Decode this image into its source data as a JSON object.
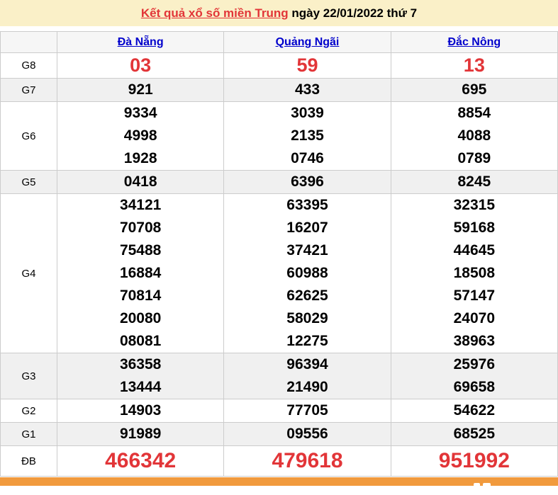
{
  "page": {
    "title_link": "Kết quả xổ số miền Trung",
    "title_rest": " ngày 22/01/2022 thứ 7"
  },
  "table": {
    "columns": [
      "Đà Nẵng",
      "Quảng Ngãi",
      "Đắc Nông"
    ],
    "rows": [
      {
        "label": "G8",
        "style": "g8-row",
        "cells": [
          [
            "03"
          ],
          [
            "59"
          ],
          [
            "13"
          ]
        ]
      },
      {
        "label": "G7",
        "style": "single",
        "cells": [
          [
            "921"
          ],
          [
            "433"
          ],
          [
            "695"
          ]
        ]
      },
      {
        "label": "G6",
        "style": "",
        "cells": [
          [
            "9334",
            "4998",
            "1928"
          ],
          [
            "3039",
            "2135",
            "0746"
          ],
          [
            "8854",
            "4088",
            "0789"
          ]
        ]
      },
      {
        "label": "G5",
        "style": "single",
        "cells": [
          [
            "0418"
          ],
          [
            "6396"
          ],
          [
            "8245"
          ]
        ]
      },
      {
        "label": "G4",
        "style": "",
        "cells": [
          [
            "34121",
            "70708",
            "75488",
            "16884",
            "70814",
            "20080",
            "08081"
          ],
          [
            "63395",
            "16207",
            "37421",
            "60988",
            "62625",
            "58029",
            "12275"
          ],
          [
            "32315",
            "59168",
            "44645",
            "18508",
            "57147",
            "24070",
            "38963"
          ]
        ]
      },
      {
        "label": "G3",
        "style": "",
        "cells": [
          [
            "36358",
            "13444"
          ],
          [
            "96394",
            "21490"
          ],
          [
            "25976",
            "69658"
          ]
        ]
      },
      {
        "label": "G2",
        "style": "single",
        "cells": [
          [
            "14903"
          ],
          [
            "77705"
          ],
          [
            "54622"
          ]
        ]
      },
      {
        "label": "G1",
        "style": "single",
        "cells": [
          [
            "91989"
          ],
          [
            "09556"
          ],
          [
            "68525"
          ]
        ]
      },
      {
        "label": "ĐB",
        "style": "db-row",
        "cells": [
          [
            "466342"
          ],
          [
            "479618"
          ],
          [
            "951992"
          ]
        ]
      }
    ]
  },
  "colors": {
    "title_bg": "#faf0c8",
    "accent_red": "#e23538",
    "link_blue": "#0000cc",
    "stripe_gray": "#f0f0f0",
    "border_gray": "#cccccc",
    "footer_orange": "#f19a3d"
  }
}
